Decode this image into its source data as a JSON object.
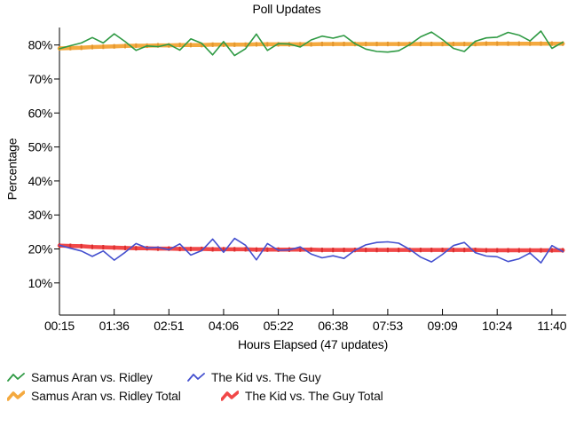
{
  "title": "Poll Updates",
  "axes": {
    "y_label": "Percentage",
    "x_label": "Hours Elapsed (47 updates)",
    "y_tick_labels": [
      "80%",
      "70%",
      "60%",
      "50%",
      "40%",
      "30%",
      "20%",
      "10%"
    ],
    "x_tick_labels": [
      "00:15",
      "01:36",
      "02:51",
      "04:06",
      "05:22",
      "06:38",
      "07:53",
      "09:09",
      "10:24",
      "11:40"
    ]
  },
  "legend": {
    "rows": [
      [
        {
          "label": "Samus Aran vs. Ridley",
          "series": "samus_updates"
        },
        {
          "label": "The Kid vs. The Guy",
          "series": "kid_updates"
        }
      ],
      [
        {
          "label": "Samus Aran vs. Ridley Total",
          "series": "samus_total"
        },
        {
          "label": "The Kid vs. The Guy Total",
          "series": "kid_total"
        }
      ]
    ]
  },
  "colors": {
    "samus_updates": "#2f9a44",
    "kid_updates": "#4450cf",
    "samus_total": "#f4a93f",
    "samus_total_marker": "#e2962e",
    "kid_total": "#f14848",
    "kid_total_marker": "#d92f2f",
    "axis": "#000000",
    "text": "#000000"
  },
  "chart_data": {
    "type": "line",
    "title": "Poll Updates",
    "xlabel": "Hours Elapsed (47 updates)",
    "ylabel": "Percentage",
    "ylim": [
      0,
      85
    ],
    "y_ticks_percent": [
      80,
      70,
      60,
      50,
      40,
      30,
      20,
      10
    ],
    "x_tick_labels": [
      "00:15",
      "01:36",
      "02:51",
      "04:06",
      "05:22",
      "06:38",
      "07:53",
      "09:09",
      "10:24",
      "11:40"
    ],
    "x_tick_every_n_points": 5,
    "n_points": 47,
    "grid": false,
    "legend_position": "bottom",
    "series": [
      {
        "id": "samus_total",
        "name": "Samus Aran vs. Ridley Total",
        "style": "thick",
        "values": [
          79.0,
          79.1,
          79.2,
          79.4,
          79.5,
          79.6,
          79.7,
          79.8,
          79.8,
          79.9,
          79.9,
          80.0,
          80.0,
          80.0,
          80.1,
          80.1,
          80.1,
          80.1,
          80.2,
          80.2,
          80.2,
          80.2,
          80.2,
          80.2,
          80.3,
          80.3,
          80.3,
          80.3,
          80.3,
          80.3,
          80.3,
          80.3,
          80.3,
          80.3,
          80.3,
          80.3,
          80.3,
          80.3,
          80.3,
          80.4,
          80.4,
          80.4,
          80.4,
          80.4,
          80.4,
          80.4,
          80.4
        ]
      },
      {
        "id": "kid_total",
        "name": "The Kid vs. The Guy Total",
        "style": "thick",
        "values": [
          21.0,
          20.9,
          20.8,
          20.6,
          20.5,
          20.4,
          20.3,
          20.2,
          20.2,
          20.1,
          20.1,
          20.0,
          20.0,
          20.0,
          19.9,
          19.9,
          19.9,
          19.9,
          19.8,
          19.8,
          19.8,
          19.8,
          19.8,
          19.8,
          19.7,
          19.7,
          19.7,
          19.7,
          19.7,
          19.7,
          19.7,
          19.7,
          19.7,
          19.7,
          19.7,
          19.7,
          19.7,
          19.7,
          19.7,
          19.6,
          19.6,
          19.6,
          19.6,
          19.6,
          19.6,
          19.6,
          19.6
        ]
      },
      {
        "id": "samus_updates",
        "name": "Samus Aran vs. Ridley",
        "style": "thin",
        "values": [
          78.9,
          79.8,
          80.6,
          82.2,
          80.6,
          83.3,
          81.0,
          78.4,
          79.7,
          79.5,
          80.2,
          78.5,
          81.8,
          80.5,
          77.1,
          81.0,
          76.9,
          78.9,
          83.2,
          78.4,
          80.4,
          80.3,
          79.4,
          81.5,
          82.6,
          82.0,
          82.8,
          80.4,
          78.8,
          78.1,
          77.9,
          78.3,
          80.1,
          82.4,
          83.8,
          81.6,
          79.0,
          78.1,
          81.1,
          82.1,
          82.3,
          83.7,
          82.9,
          81.2,
          84.1,
          79.0,
          80.8
        ]
      },
      {
        "id": "kid_updates",
        "name": "The Kid vs. The Guy",
        "style": "thin",
        "values": [
          21.1,
          20.2,
          19.4,
          17.8,
          19.4,
          16.7,
          19.0,
          21.6,
          20.3,
          20.5,
          19.8,
          21.5,
          18.2,
          19.5,
          22.9,
          19.0,
          23.1,
          21.1,
          16.8,
          21.6,
          19.6,
          19.7,
          20.6,
          18.5,
          17.4,
          18.0,
          17.2,
          19.6,
          21.2,
          21.9,
          22.1,
          21.7,
          19.9,
          17.6,
          16.2,
          18.4,
          21.0,
          21.9,
          18.9,
          17.9,
          17.7,
          16.3,
          17.1,
          18.8,
          15.9,
          21.0,
          19.2
        ]
      }
    ]
  }
}
